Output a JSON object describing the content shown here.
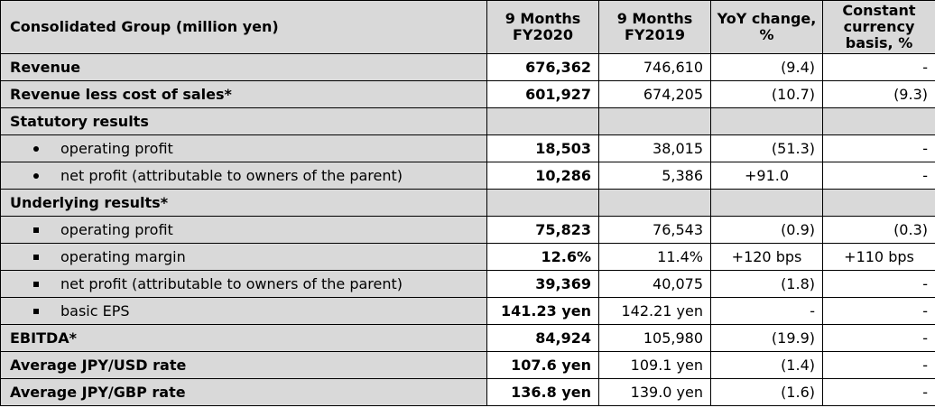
{
  "headers": {
    "label": "Consolidated Group (million yen)",
    "fy2020": "9 Months FY2020",
    "fy2019": "9 Months FY2019",
    "yoy": "YoY change, %",
    "constant": "Constant currency basis, %"
  },
  "rows": [
    {
      "label": "Revenue",
      "fy2020": "676,362",
      "fy2019": "746,610",
      "yoy": "(9.4)",
      "constant": "-"
    },
    {
      "label": "Revenue less cost of sales*",
      "fy2020": "601,927",
      "fy2019": "674,205",
      "yoy": "(10.7)",
      "constant": "(9.3)"
    },
    {
      "label": "Statutory results"
    },
    {
      "label": "operating profit",
      "fy2020": "18,503",
      "fy2019": "38,015",
      "yoy": "(51.3)",
      "constant": "-"
    },
    {
      "label": "net profit (attributable to owners of the parent)",
      "fy2020": "10,286",
      "fy2019": "5,386",
      "yoy": "+91.0",
      "constant": "-"
    },
    {
      "label": "Underlying results*"
    },
    {
      "label": "operating profit",
      "fy2020": "75,823",
      "fy2019": "76,543",
      "yoy": "(0.9)",
      "constant": "(0.3)"
    },
    {
      "label": "operating margin",
      "fy2020": "12.6%",
      "fy2019": "11.4%",
      "yoy": "+120 bps",
      "constant": "+110 bps"
    },
    {
      "label": "net profit (attributable to owners of the parent)",
      "fy2020": "39,369",
      "fy2019": "40,075",
      "yoy": "(1.8)",
      "constant": "-"
    },
    {
      "label": "basic EPS",
      "fy2020": "141.23 yen",
      "fy2019": "142.21 yen",
      "yoy": "-",
      "constant": "-"
    },
    {
      "label": "EBITDA*",
      "fy2020": "84,924",
      "fy2019": "105,980",
      "yoy": "(19.9)",
      "constant": "-"
    },
    {
      "label": "Average JPY/USD rate",
      "fy2020": "107.6 yen",
      "fy2019": "109.1 yen",
      "yoy": "(1.4)",
      "constant": "-"
    },
    {
      "label": "Average JPY/GBP rate",
      "fy2020": "136.8 yen",
      "fy2019": "139.0 yen",
      "yoy": "(1.6)",
      "constant": "-"
    }
  ]
}
